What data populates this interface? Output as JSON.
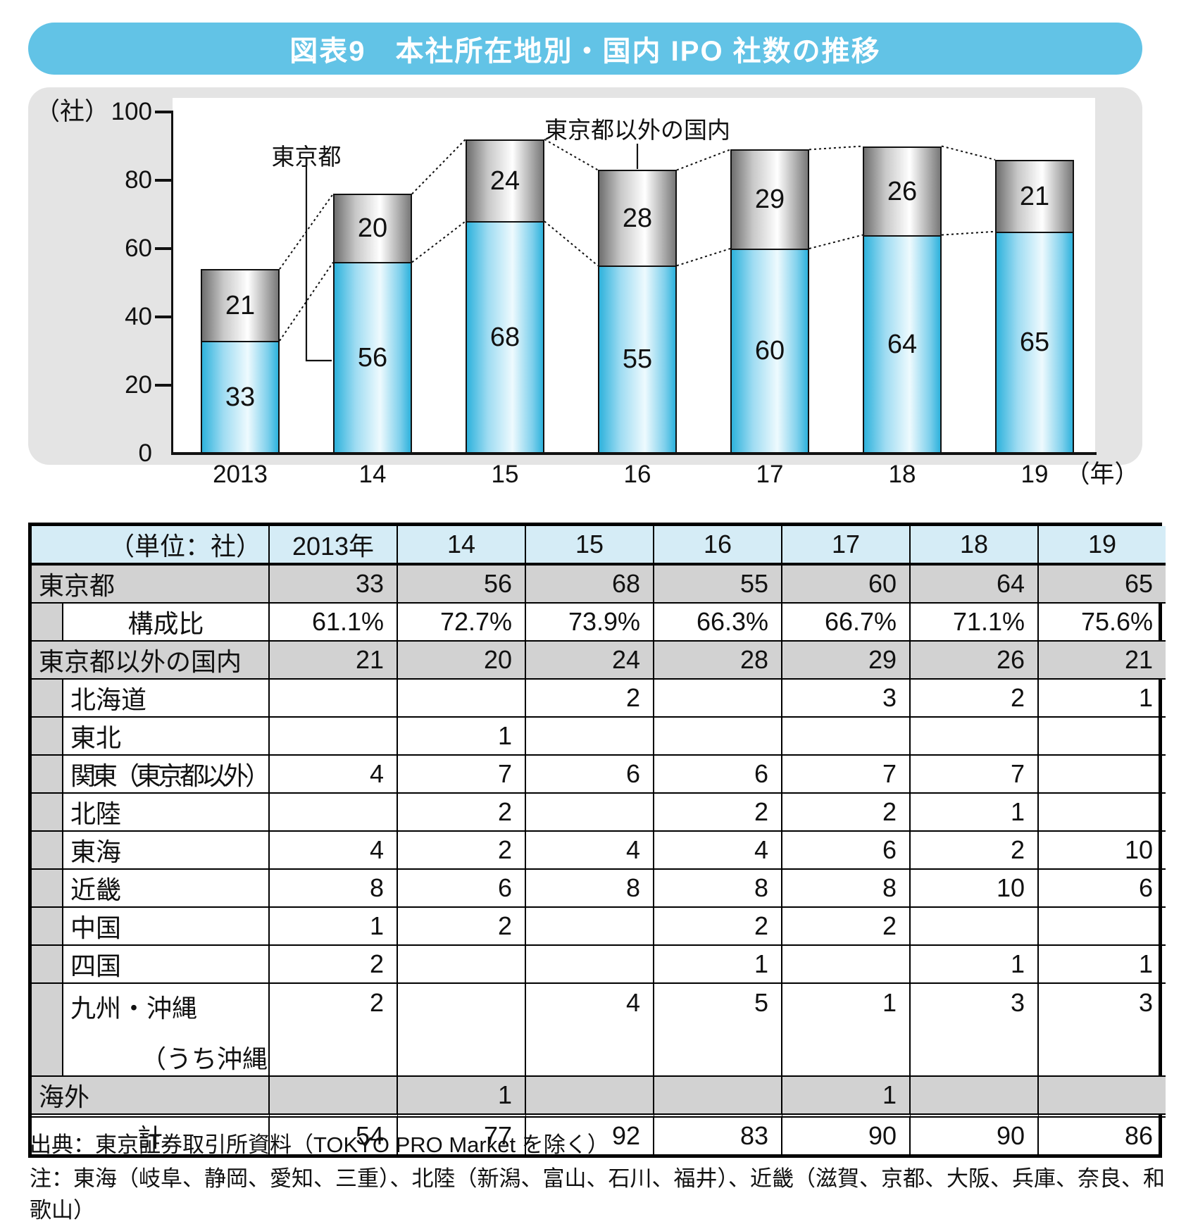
{
  "title": "図表9　本社所在地別・国内 IPO 社数の推移",
  "chart_data": {
    "type": "bar",
    "stacked": true,
    "categories": [
      "2013",
      "14",
      "15",
      "16",
      "17",
      "18",
      "19"
    ],
    "series": [
      {
        "name": "東京都",
        "values": [
          33,
          56,
          68,
          55,
          60,
          64,
          65
        ]
      },
      {
        "name": "東京都以外の国内",
        "values": [
          21,
          20,
          24,
          28,
          29,
          26,
          21
        ]
      }
    ],
    "totals": [
      54,
      77,
      92,
      83,
      90,
      90,
      86
    ],
    "title": "図表9　本社所在地別・国内 IPO 社数の推移",
    "ylabel": "（社）",
    "xlabel": "（年）",
    "ylim": [
      0,
      100
    ],
    "y_ticks": [
      0,
      20,
      40,
      60,
      80,
      100
    ],
    "grid": false,
    "legend": "inline-annotations"
  },
  "table": {
    "unit_header": "（単位：社）",
    "col_headers": [
      "2013年",
      "14",
      "15",
      "16",
      "17",
      "18",
      "19"
    ],
    "rows": [
      {
        "key": "tokyo",
        "label": "東京都",
        "style": "gray",
        "indent": false,
        "values": [
          "33",
          "56",
          "68",
          "55",
          "60",
          "64",
          "65"
        ]
      },
      {
        "key": "composition-ratio",
        "label": "構成比",
        "style": "white",
        "indent": true,
        "center": true,
        "values": [
          "61.1%",
          "72.7%",
          "73.9%",
          "66.3%",
          "66.7%",
          "71.1%",
          "75.6%"
        ]
      },
      {
        "key": "outside-tokyo",
        "label": "東京都以外の国内",
        "style": "gray",
        "indent": false,
        "values": [
          "21",
          "20",
          "24",
          "28",
          "29",
          "26",
          "21"
        ]
      },
      {
        "key": "hokkaido",
        "label": "北海道",
        "style": "white",
        "indent": true,
        "values": [
          "",
          "",
          "2",
          "",
          "3",
          "2",
          "1"
        ]
      },
      {
        "key": "tohoku",
        "label": "東北",
        "style": "white",
        "indent": true,
        "values": [
          "",
          "1",
          "",
          "",
          "",
          "",
          ""
        ]
      },
      {
        "key": "kanto",
        "label": "関東（東京都以外）",
        "style": "white",
        "indent": true,
        "values": [
          "4",
          "7",
          "6",
          "6",
          "7",
          "7",
          ""
        ]
      },
      {
        "key": "hokuriku",
        "label": "北陸",
        "style": "white",
        "indent": true,
        "values": [
          "",
          "2",
          "",
          "2",
          "2",
          "1",
          ""
        ]
      },
      {
        "key": "tokai",
        "label": "東海",
        "style": "white",
        "indent": true,
        "values": [
          "4",
          "2",
          "4",
          "4",
          "6",
          "2",
          "10"
        ]
      },
      {
        "key": "kinki",
        "label": "近畿",
        "style": "white",
        "indent": true,
        "values": [
          "8",
          "6",
          "8",
          "8",
          "8",
          "10",
          "6"
        ]
      },
      {
        "key": "chugoku",
        "label": "中国",
        "style": "white",
        "indent": true,
        "values": [
          "1",
          "2",
          "",
          "2",
          "2",
          "",
          ""
        ]
      },
      {
        "key": "shikoku",
        "label": "四国",
        "style": "white",
        "indent": true,
        "values": [
          "2",
          "",
          "",
          "1",
          "",
          "1",
          "1"
        ]
      },
      {
        "key": "kyushu-okinawa",
        "label": "九州・沖縄",
        "sublabel": "（うち沖縄）",
        "style": "white",
        "indent": true,
        "tall": true,
        "values": [
          "2",
          "",
          "4",
          "5",
          "1",
          "3",
          "3"
        ]
      },
      {
        "key": "overseas",
        "label": "海外",
        "style": "gray",
        "indent": false,
        "values": [
          "",
          "1",
          "",
          "",
          "1",
          "",
          ""
        ]
      },
      {
        "key": "total",
        "label": "計",
        "style": "total",
        "indent": false,
        "center": true,
        "values": [
          "54",
          "77",
          "92",
          "83",
          "90",
          "90",
          "86"
        ]
      }
    ]
  },
  "footer": {
    "source": "出典：東京証券取引所資料（TOKYO PRO Market を除く）",
    "note": "注：東海（岐阜、静岡、愛知、三重）、北陸（新潟、富山、石川、福井）、近畿（滋賀、京都、大阪、兵庫、奈良、和歌山）"
  }
}
